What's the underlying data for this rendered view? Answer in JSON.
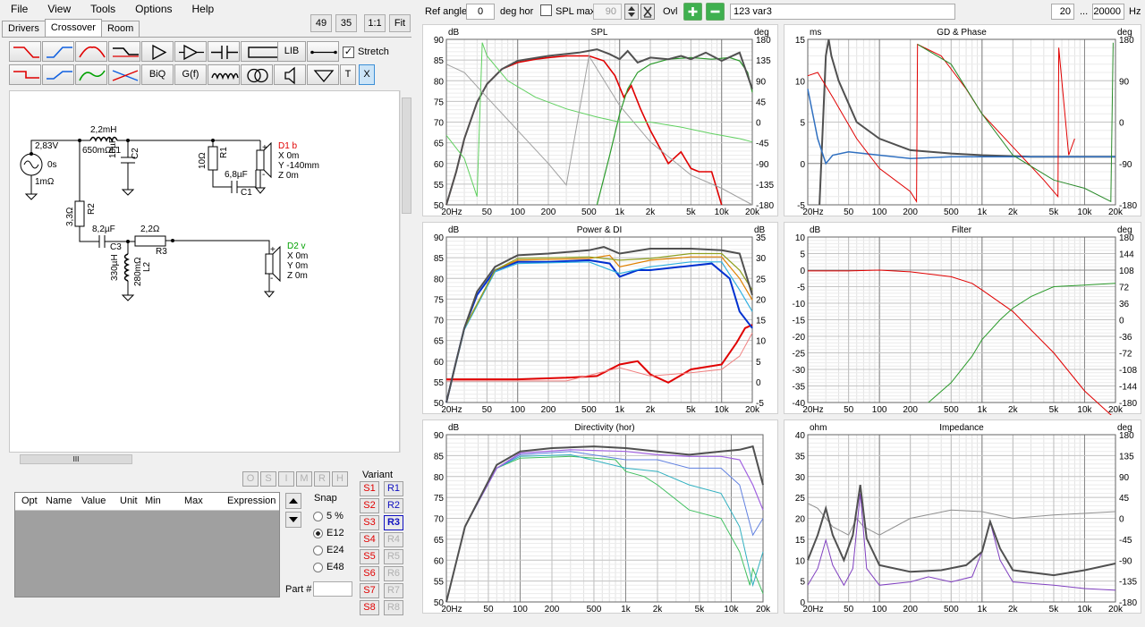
{
  "menu": [
    "File",
    "View",
    "Tools",
    "Options",
    "Help"
  ],
  "left_toolbar": {
    "n49": "49",
    "n35": "35",
    "one_to_one": "1:1",
    "fit": "Fit"
  },
  "tabs": [
    "Drivers",
    "Crossover",
    "Room"
  ],
  "palette": {
    "lib": "LIB",
    "stretch": "Stretch",
    "biq": "BiQ",
    "gf": "G(f)",
    "t": "T",
    "x": "X"
  },
  "schematic": {
    "source_v": "2,83V",
    "source_t": "0s",
    "source_r": "1mΩ",
    "l1_val": "2,2mH",
    "l1_r": "650mΩ",
    "l1": "L1",
    "c2_val": "10µF",
    "c2": "C2",
    "r1_val": "10Ω",
    "r1": "R1",
    "c1_val": "6,8µF",
    "c1": "C1",
    "r2_val": "3,3Ω",
    "r2": "R2",
    "c3_val": "8,2µF",
    "c3": "C3",
    "r3_val": "2,2Ω",
    "r3": "R3",
    "l2_val": "330µH",
    "l2_r": "280mΩ",
    "l2": "L2",
    "d1": {
      "name": "D1 b",
      "x": "X 0m",
      "y": "Y -140mm",
      "z": "Z 0m"
    },
    "d2": {
      "name": "D2 v",
      "x": "X 0m",
      "y": "Y 0m",
      "z": "Z 0m"
    },
    "plus": "+",
    "minus": "-"
  },
  "hscroll_grip": "III",
  "optimizer": {
    "buttons": [
      "O",
      "S",
      "I",
      "M",
      "R",
      "H"
    ],
    "columns": [
      "Opt",
      "Name",
      "Value",
      "Unit",
      "Min",
      "Max",
      "Expression"
    ],
    "snap_label": "Snap",
    "snap_options": [
      "5 %",
      "E12",
      "E24",
      "E48"
    ],
    "snap_selected": "E12",
    "part_label": "Part #",
    "variant_label": "Variant",
    "variants_s": [
      "S1",
      "S2",
      "S3",
      "S4",
      "S5",
      "S6",
      "S7",
      "S8"
    ],
    "variants_r": [
      "R1",
      "R2",
      "R3",
      "R4",
      "R5",
      "R6",
      "R7",
      "R8"
    ]
  },
  "topbar": {
    "ref_angle_label": "Ref angle",
    "ref_angle_value": "0",
    "deg_hor": "deg hor",
    "spl_max_label": "SPL max",
    "spl_max_value": "90",
    "ovl": "Ovl",
    "variant_name": "123 var3",
    "freq_min": "20",
    "dots": "...",
    "freq_max": "20000",
    "hz": "Hz"
  },
  "graphs": {
    "spl": {
      "title": "SPL",
      "left_unit": "dB",
      "right_unit": "deg",
      "left_ticks": [
        "90",
        "85",
        "80",
        "75",
        "70",
        "65",
        "60",
        "55",
        "50"
      ],
      "right_ticks": [
        "180",
        "135",
        "90",
        "45",
        "0",
        "-45",
        "-90",
        "-135",
        "-180"
      ]
    },
    "gd": {
      "title": "GD & Phase",
      "left_unit": "ms",
      "right_unit": "deg",
      "left_ticks": [
        "15",
        "10",
        "5",
        "0",
        "-5"
      ],
      "right_ticks": [
        "180",
        "90",
        "0",
        "-90",
        "-180"
      ]
    },
    "power": {
      "title": "Power & DI",
      "left_unit": "dB",
      "right_unit": "dB",
      "left_ticks": [
        "90",
        "85",
        "80",
        "75",
        "70",
        "65",
        "60",
        "55",
        "50"
      ],
      "right_ticks": [
        "35",
        "30",
        "25",
        "20",
        "15",
        "10",
        "5",
        "0",
        "-5"
      ]
    },
    "filter": {
      "title": "Filter",
      "left_unit": "dB",
      "right_unit": "deg",
      "left_ticks": [
        "10",
        "5",
        "0",
        "-5",
        "-10",
        "-15",
        "-20",
        "-25",
        "-30",
        "-35",
        "-40"
      ],
      "right_ticks": [
        "180",
        "144",
        "108",
        "72",
        "36",
        "0",
        "-36",
        "-72",
        "-108",
        "-144",
        "-180"
      ]
    },
    "directivity": {
      "title": "Directivity (hor)",
      "left_unit": "dB",
      "left_ticks": [
        "90",
        "85",
        "80",
        "75",
        "70",
        "65",
        "60",
        "55",
        "50"
      ]
    },
    "impedance": {
      "title": "Impedance",
      "left_unit": "ohm",
      "right_unit": "deg",
      "left_ticks": [
        "40",
        "35",
        "30",
        "25",
        "20",
        "15",
        "10",
        "5",
        "0"
      ],
      "right_ticks": [
        "180",
        "135",
        "90",
        "45",
        "0",
        "-45",
        "-90",
        "-135",
        "-180"
      ]
    },
    "x_ticks": [
      "20Hz",
      "50",
      "100",
      "200",
      "500",
      "1k",
      "2k",
      "5k",
      "10k",
      "20k"
    ]
  },
  "colors": {
    "red": "#e00000",
    "green": "#00a000",
    "dark": "#505050",
    "blue": "#0030d0",
    "purple": "#8040c0",
    "orange": "#e08000"
  }
}
